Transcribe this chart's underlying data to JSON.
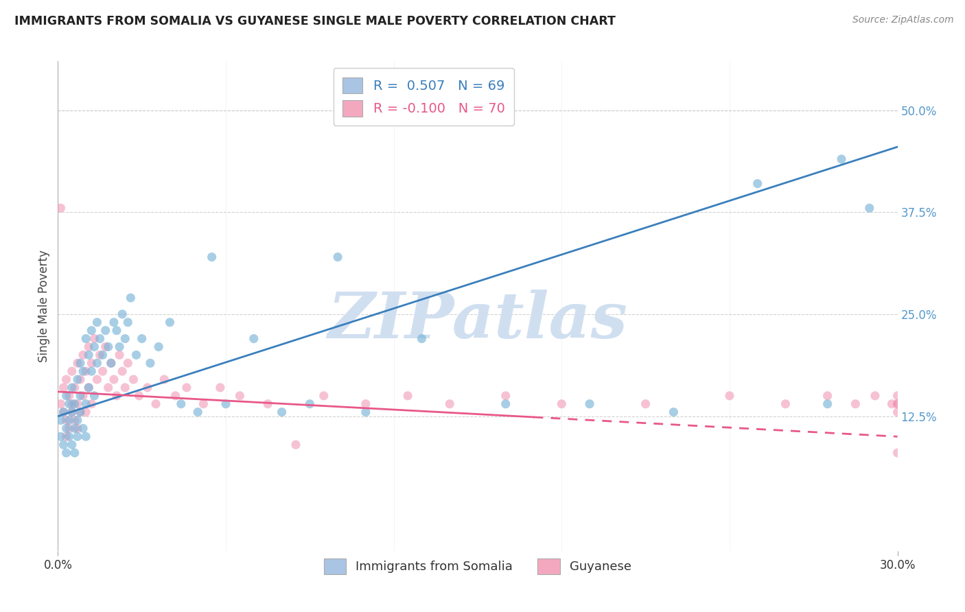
{
  "title": "IMMIGRANTS FROM SOMALIA VS GUYANESE SINGLE MALE POVERTY CORRELATION CHART",
  "source": "Source: ZipAtlas.com",
  "ylabel": "Single Male Poverty",
  "right_yticks": [
    "50.0%",
    "37.5%",
    "25.0%",
    "12.5%"
  ],
  "right_ytick_vals": [
    0.5,
    0.375,
    0.25,
    0.125
  ],
  "xlim": [
    0.0,
    0.3
  ],
  "ylim": [
    -0.04,
    0.56
  ],
  "legend_entries": [
    {
      "label": "Immigrants from Somalia",
      "color": "#aac4e4",
      "R": "0.507",
      "N": "69"
    },
    {
      "label": "Guyanese",
      "color": "#f4a8c0",
      "R": "-0.100",
      "N": "70"
    }
  ],
  "watermark_text": "ZIPatlas",
  "watermark_color": "#d0dff0",
  "background_color": "#ffffff",
  "grid_color": "#cccccc",
  "somalia_scatter_color": "#7ab4d8",
  "guyanese_scatter_color": "#f090b0",
  "somalia_line_color": "#3a7fbc",
  "guyanese_line_color": "#e85888",
  "somalia_line": {
    "x0": 0.0,
    "y0": 0.125,
    "x1": 0.3,
    "y1": 0.455
  },
  "guyanese_line": {
    "x0": 0.0,
    "y0": 0.155,
    "x1": 0.3,
    "y1": 0.1
  },
  "guyanese_line_dashed_start": 0.17,
  "somalia_points_x": [
    0.001,
    0.001,
    0.002,
    0.002,
    0.003,
    0.003,
    0.003,
    0.004,
    0.004,
    0.004,
    0.005,
    0.005,
    0.005,
    0.006,
    0.006,
    0.006,
    0.007,
    0.007,
    0.007,
    0.008,
    0.008,
    0.008,
    0.009,
    0.009,
    0.01,
    0.01,
    0.01,
    0.011,
    0.011,
    0.012,
    0.012,
    0.013,
    0.013,
    0.014,
    0.014,
    0.015,
    0.016,
    0.017,
    0.018,
    0.019,
    0.02,
    0.021,
    0.022,
    0.023,
    0.024,
    0.025,
    0.026,
    0.028,
    0.03,
    0.033,
    0.036,
    0.04,
    0.044,
    0.05,
    0.055,
    0.06,
    0.07,
    0.08,
    0.09,
    0.1,
    0.11,
    0.13,
    0.16,
    0.19,
    0.22,
    0.25,
    0.275,
    0.28,
    0.29
  ],
  "somalia_points_y": [
    0.12,
    0.1,
    0.13,
    0.09,
    0.11,
    0.15,
    0.08,
    0.12,
    0.14,
    0.1,
    0.13,
    0.16,
    0.09,
    0.11,
    0.14,
    0.08,
    0.17,
    0.12,
    0.1,
    0.15,
    0.13,
    0.19,
    0.11,
    0.18,
    0.22,
    0.14,
    0.1,
    0.2,
    0.16,
    0.23,
    0.18,
    0.21,
    0.15,
    0.19,
    0.24,
    0.22,
    0.2,
    0.23,
    0.21,
    0.19,
    0.24,
    0.23,
    0.21,
    0.25,
    0.22,
    0.24,
    0.27,
    0.2,
    0.22,
    0.19,
    0.21,
    0.24,
    0.14,
    0.13,
    0.32,
    0.14,
    0.22,
    0.13,
    0.14,
    0.32,
    0.13,
    0.22,
    0.14,
    0.14,
    0.13,
    0.41,
    0.14,
    0.44,
    0.38
  ],
  "guyanese_points_x": [
    0.001,
    0.001,
    0.002,
    0.002,
    0.003,
    0.003,
    0.003,
    0.004,
    0.004,
    0.005,
    0.005,
    0.005,
    0.006,
    0.006,
    0.007,
    0.007,
    0.007,
    0.008,
    0.008,
    0.009,
    0.009,
    0.01,
    0.01,
    0.011,
    0.011,
    0.012,
    0.012,
    0.013,
    0.014,
    0.015,
    0.016,
    0.017,
    0.018,
    0.019,
    0.02,
    0.021,
    0.022,
    0.023,
    0.024,
    0.025,
    0.027,
    0.029,
    0.032,
    0.035,
    0.038,
    0.042,
    0.046,
    0.052,
    0.058,
    0.065,
    0.075,
    0.085,
    0.095,
    0.11,
    0.125,
    0.14,
    0.16,
    0.18,
    0.21,
    0.24,
    0.26,
    0.275,
    0.285,
    0.292,
    0.298,
    0.3,
    0.3,
    0.3,
    0.3,
    0.3
  ],
  "guyanese_points_y": [
    0.14,
    0.38,
    0.13,
    0.16,
    0.1,
    0.17,
    0.12,
    0.15,
    0.11,
    0.14,
    0.18,
    0.13,
    0.16,
    0.12,
    0.19,
    0.14,
    0.11,
    0.17,
    0.13,
    0.2,
    0.15,
    0.18,
    0.13,
    0.21,
    0.16,
    0.19,
    0.14,
    0.22,
    0.17,
    0.2,
    0.18,
    0.21,
    0.16,
    0.19,
    0.17,
    0.15,
    0.2,
    0.18,
    0.16,
    0.19,
    0.17,
    0.15,
    0.16,
    0.14,
    0.17,
    0.15,
    0.16,
    0.14,
    0.16,
    0.15,
    0.14,
    0.09,
    0.15,
    0.14,
    0.15,
    0.14,
    0.15,
    0.14,
    0.14,
    0.15,
    0.14,
    0.15,
    0.14,
    0.15,
    0.14,
    0.15,
    0.14,
    0.13,
    0.08,
    0.14
  ]
}
